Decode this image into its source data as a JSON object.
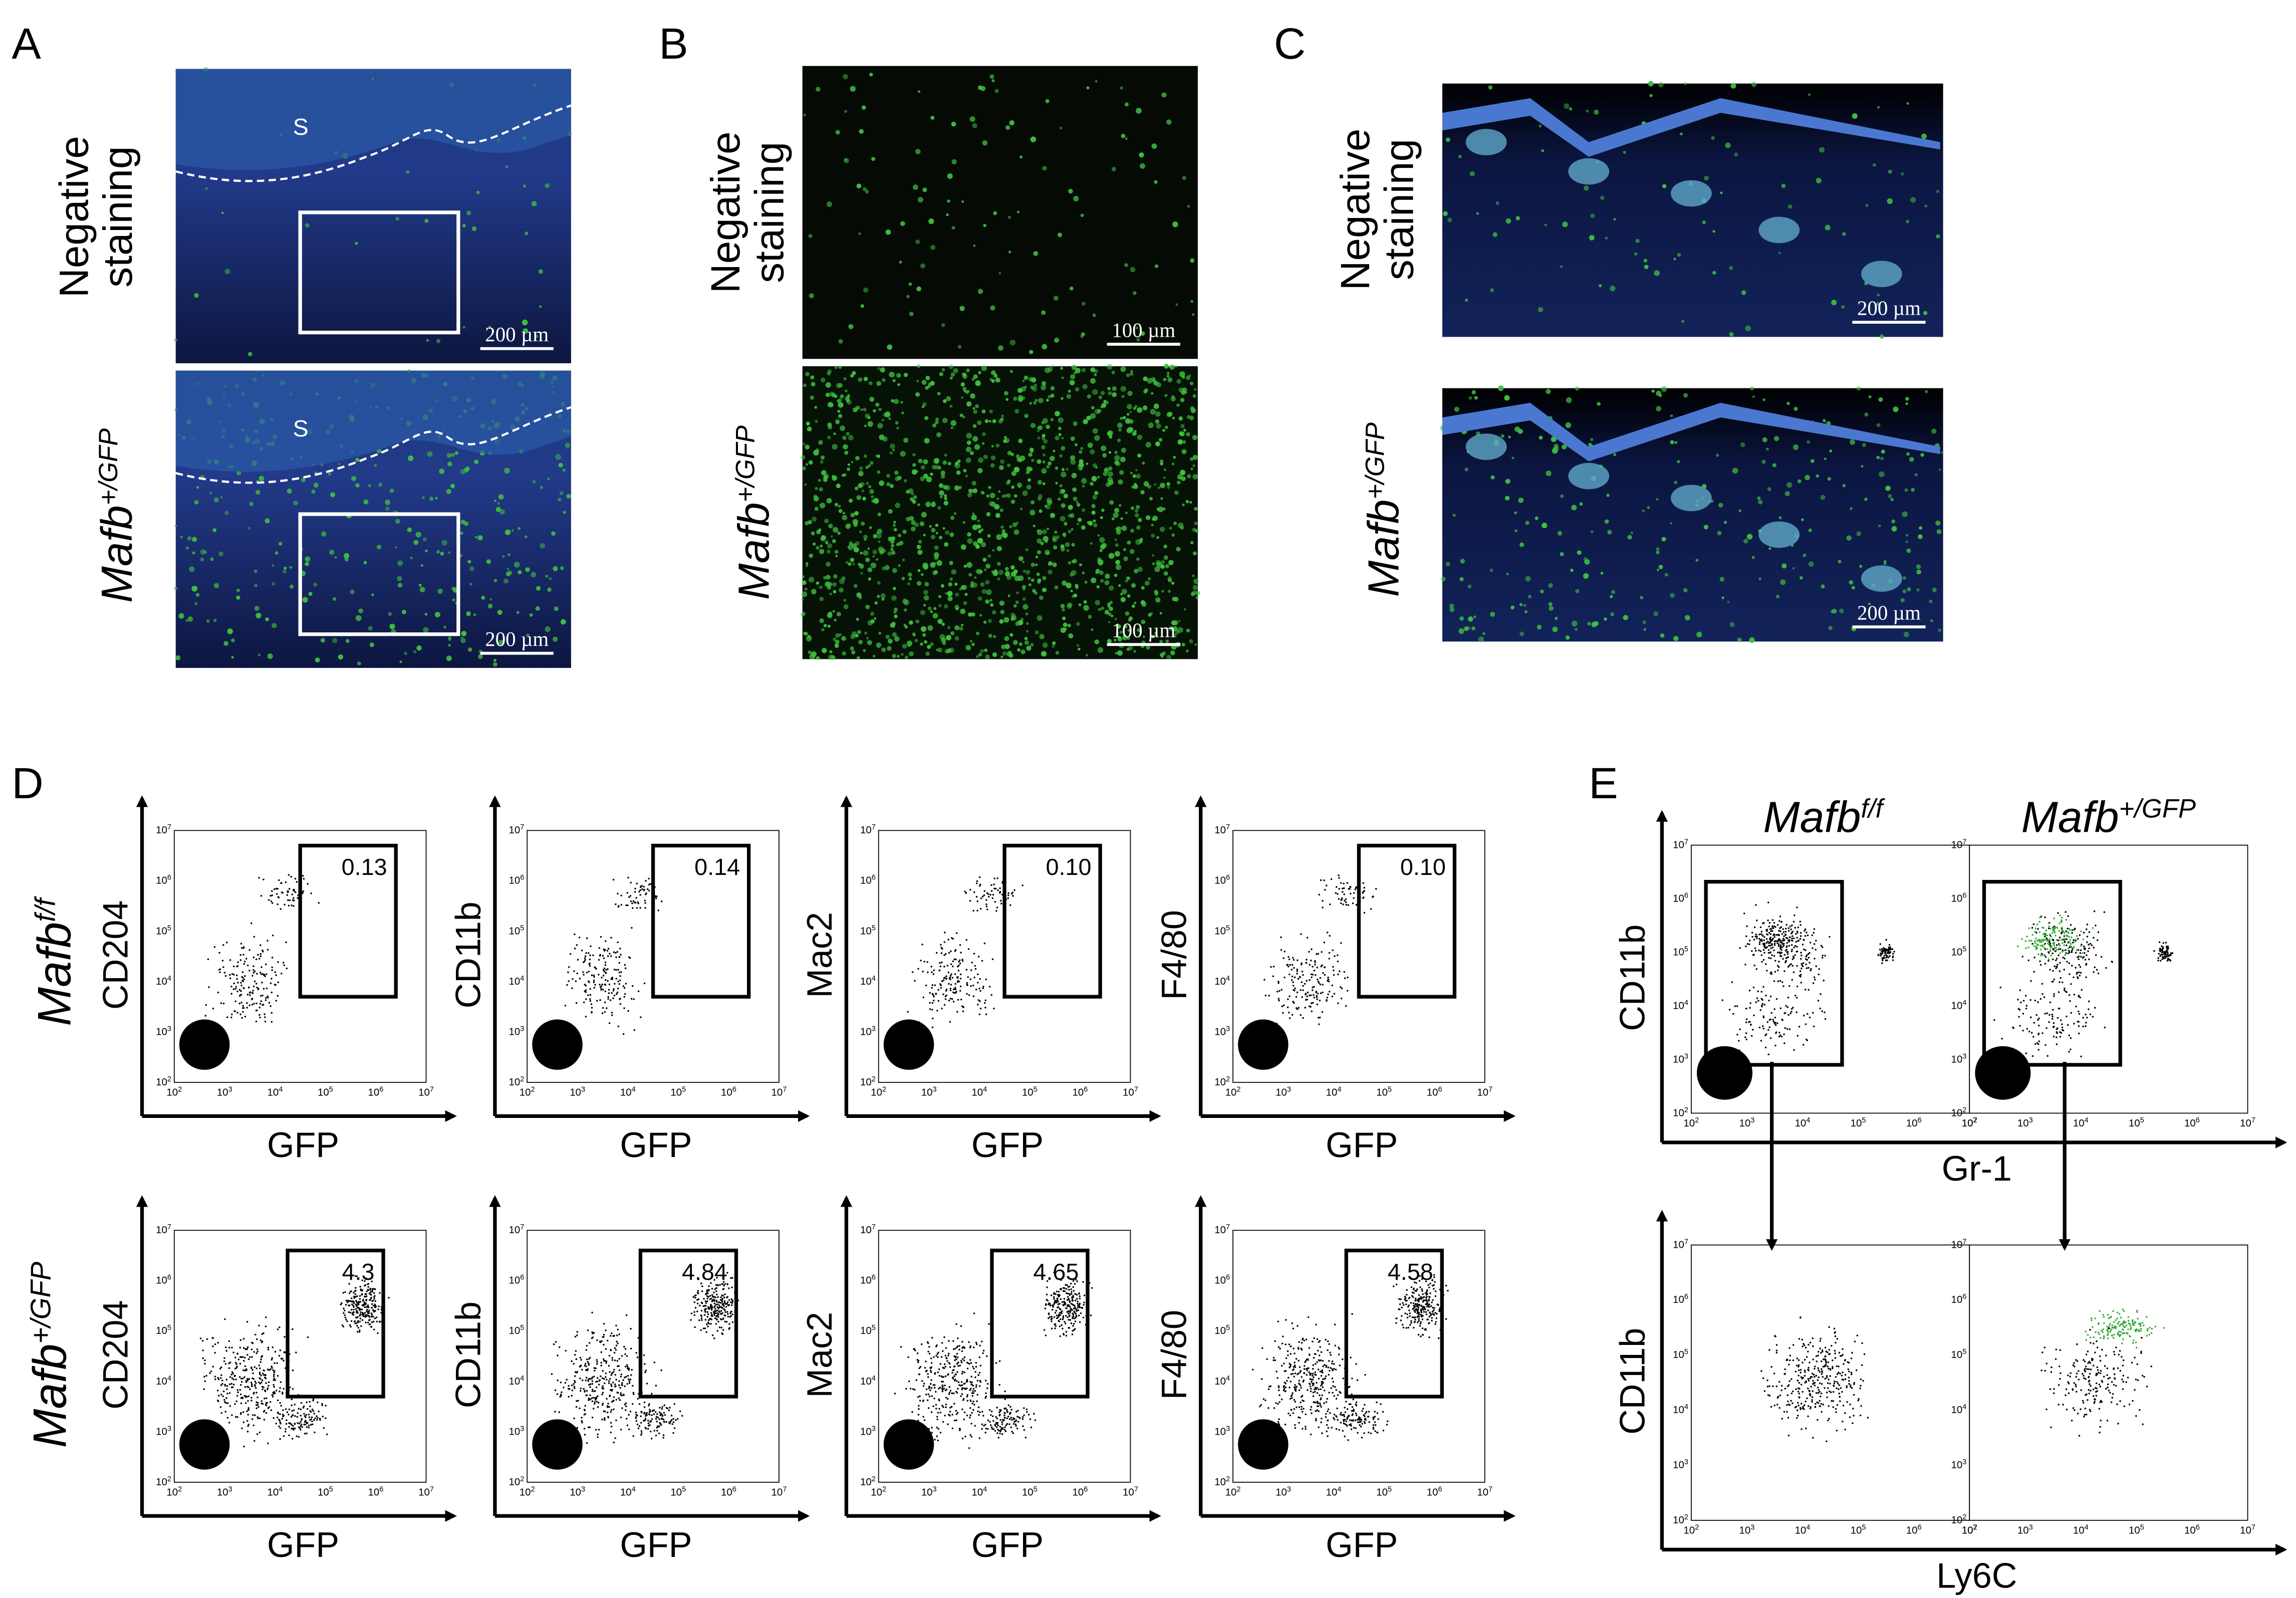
{
  "labels": {
    "a": "A",
    "b": "B",
    "c": "C",
    "d": "D",
    "e": "E"
  },
  "negative_staining": [
    "Negative",
    "staining"
  ],
  "genotype_gfp": {
    "base": "Mafb",
    "sup": "+/GFP"
  },
  "genotype_ff": {
    "base": "Mafb",
    "sup": "f/f"
  },
  "micro": {
    "s_label": "S",
    "scale_a": "200 µm",
    "scale_b": "100 µm",
    "scale_c": "200 µm"
  },
  "tick_base": "10",
  "tick_exps": [
    "2",
    "3",
    "4",
    "5",
    "6",
    "7"
  ],
  "flow_d": {
    "x_label": "GFP",
    "y_labels": [
      "CD204",
      "CD11b",
      "Mac2",
      "F4/80"
    ],
    "gates": [
      [
        "0.13",
        "0.14",
        "0.10",
        "0.10"
      ],
      [
        "4.3",
        "4.84",
        "4.65",
        "4.58"
      ]
    ]
  },
  "flow_e": {
    "x_labels": [
      "Gr-1",
      "Ly6C"
    ],
    "y_label": "CD11b"
  }
}
